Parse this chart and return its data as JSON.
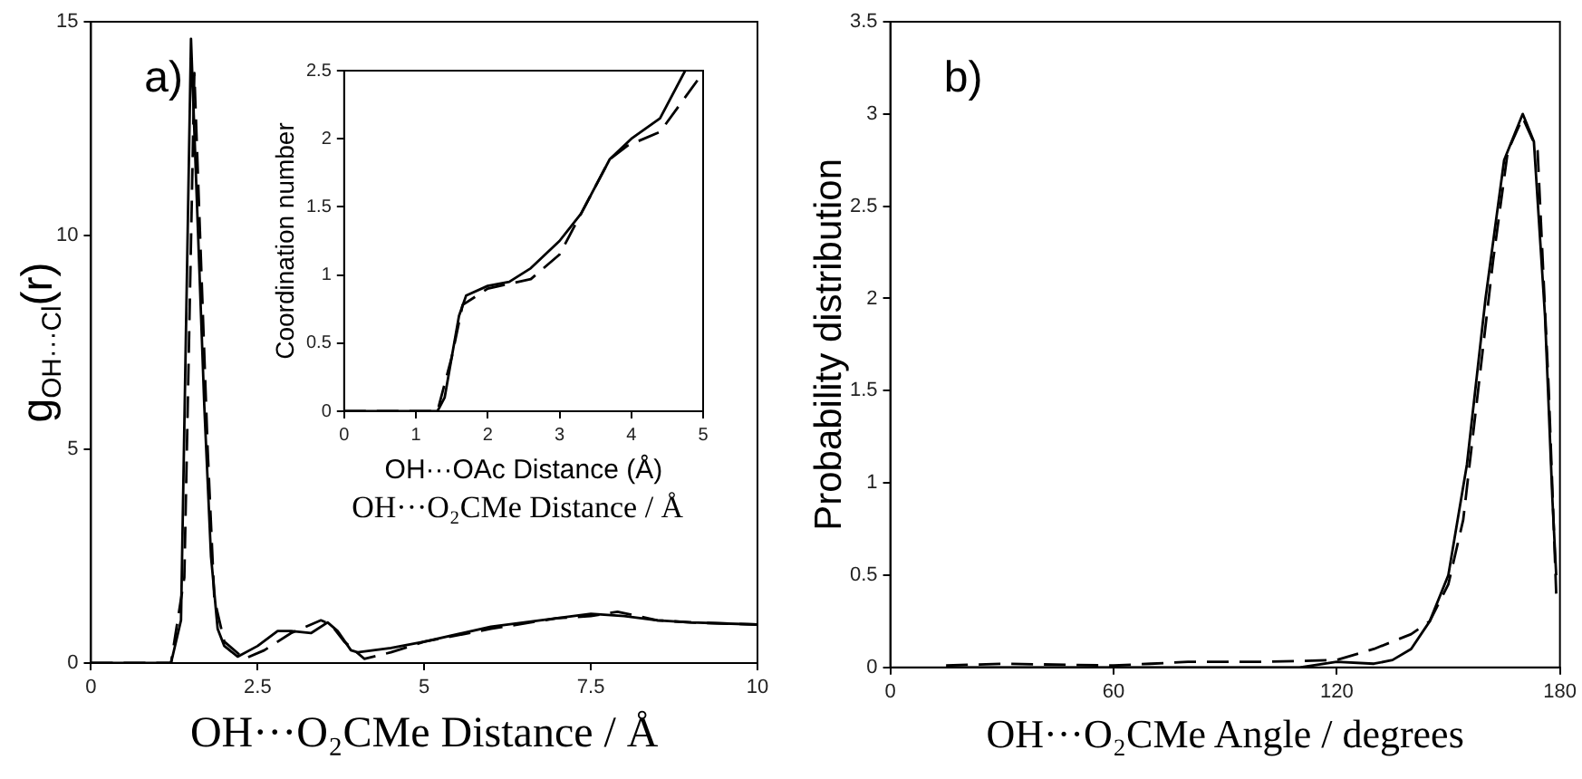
{
  "chart_data": [
    {
      "type": "line",
      "xlabel": "OH···O₂CMe Distance / Å",
      "ylabel": "g$_{OH···Cl}$(r)",
      "xlim": [
        0,
        10
      ],
      "ylim": [
        0,
        15
      ],
      "xticks": [
        0,
        2.5,
        5,
        7.5,
        10
      ],
      "yticks": [
        0,
        5,
        10,
        15
      ],
      "grid": false,
      "legend": false,
      "marker": "none",
      "annotations": [
        "a)",
        "OH···O₂CMe Distance / Å"
      ],
      "series": [
        {
          "color": "#000000",
          "line_style": "solid",
          "x": [
            0,
            1.2,
            1.35,
            1.5,
            1.7,
            1.8,
            1.9,
            2.0,
            2.2,
            2.5,
            2.8,
            3.0,
            3.3,
            3.55,
            3.7,
            3.9,
            4.0,
            4.5,
            5,
            6,
            7,
            7.5,
            8,
            8.5,
            9,
            10
          ],
          "values": [
            0,
            0,
            1,
            14.6,
            6,
            2.5,
            0.8,
            0.4,
            0.15,
            0.4,
            0.75,
            0.75,
            0.7,
            0.95,
            0.75,
            0.3,
            0.25,
            0.35,
            0.5,
            0.85,
            1.05,
            1.15,
            1.1,
            1.0,
            0.95,
            0.9
          ]
        },
        {
          "color": "#000000",
          "line_style": "dashed",
          "x": [
            0,
            1.2,
            1.4,
            1.55,
            1.75,
            1.85,
            2.0,
            2.3,
            2.6,
            3.0,
            3.45,
            3.6,
            3.8,
            4.1,
            4.5,
            5,
            6,
            7,
            7.5,
            7.9,
            8.5,
            9,
            10
          ],
          "values": [
            0,
            0,
            2,
            13.8,
            5,
            1.5,
            0.5,
            0.1,
            0.3,
            0.7,
            1.0,
            0.9,
            0.5,
            0.1,
            0.25,
            0.5,
            0.8,
            1.05,
            1.1,
            1.2,
            1.0,
            0.95,
            0.9
          ]
        }
      ]
    },
    {
      "type": "line",
      "xlabel": "OH···OAc Distance (Å)",
      "ylabel": "Coordination number",
      "xlim": [
        0,
        5
      ],
      "ylim": [
        0,
        2.5
      ],
      "xticks": [
        0,
        1,
        2,
        3,
        4,
        5
      ],
      "yticks": [
        0,
        0.5,
        1,
        1.5,
        2,
        2.5
      ],
      "grid": false,
      "legend": false,
      "marker": "none",
      "series": [
        {
          "color": "#000000",
          "line_style": "solid",
          "x": [
            0,
            1.3,
            1.4,
            1.5,
            1.6,
            1.7,
            2.0,
            2.3,
            2.6,
            3.0,
            3.3,
            3.7,
            4.0,
            4.4,
            4.75
          ],
          "values": [
            0,
            0,
            0.1,
            0.4,
            0.7,
            0.85,
            0.92,
            0.95,
            1.05,
            1.25,
            1.45,
            1.85,
            2.0,
            2.15,
            2.5
          ]
        },
        {
          "color": "#000000",
          "line_style": "dashed",
          "x": [
            0,
            1.3,
            1.5,
            1.65,
            2.0,
            2.6,
            3.0,
            3.3,
            3.7,
            3.95,
            4.4,
            4.95
          ],
          "values": [
            0,
            0,
            0.4,
            0.78,
            0.9,
            0.97,
            1.15,
            1.45,
            1.85,
            1.95,
            2.05,
            2.45
          ]
        }
      ]
    },
    {
      "type": "line",
      "xlabel": "OH···O₂CMe Angle / degrees",
      "ylabel": "Probability distribution",
      "xlim": [
        0,
        180
      ],
      "ylim": [
        0,
        3.5
      ],
      "xticks": [
        0,
        60,
        120,
        180
      ],
      "yticks": [
        0,
        0.5,
        1,
        1.5,
        2,
        2.5,
        3,
        3.5
      ],
      "grid": false,
      "legend": false,
      "marker": "none",
      "annotations": [
        "b)"
      ],
      "series": [
        {
          "color": "#000000",
          "line_style": "solid",
          "x": [
            15,
            60,
            110,
            120,
            130,
            135,
            140,
            145,
            150,
            155,
            160,
            165,
            170,
            173,
            176,
            178,
            179
          ],
          "values": [
            0,
            0,
            0,
            0.03,
            0.02,
            0.04,
            0.1,
            0.25,
            0.5,
            1.1,
            2.0,
            2.75,
            3.0,
            2.85,
            1.9,
            0.9,
            0.5
          ]
        },
        {
          "color": "#000000",
          "line_style": "dashed",
          "x": [
            15,
            30,
            60,
            70,
            80,
            90,
            100,
            120,
            130,
            135,
            140,
            145,
            150,
            154,
            158,
            162,
            166,
            170,
            174,
            177,
            179
          ],
          "values": [
            0.01,
            0.02,
            0.01,
            0.02,
            0.03,
            0.03,
            0.03,
            0.04,
            0.1,
            0.14,
            0.18,
            0.25,
            0.45,
            0.8,
            1.5,
            2.2,
            2.8,
            2.98,
            2.8,
            1.5,
            0.4
          ]
        }
      ]
    }
  ]
}
